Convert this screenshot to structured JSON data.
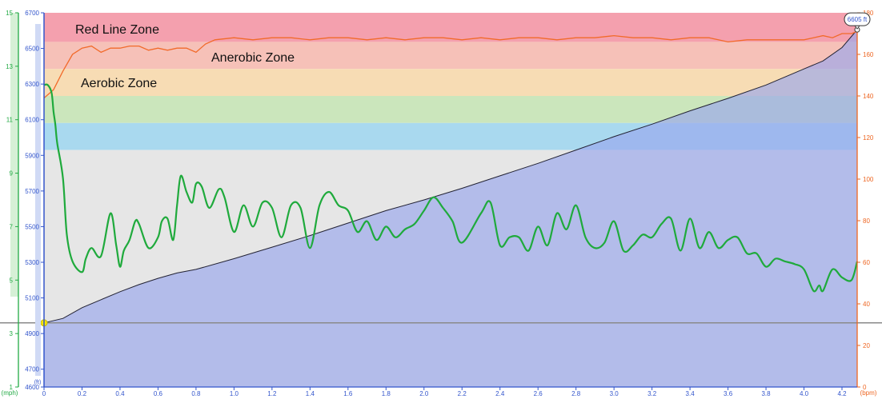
{
  "chart_data": {
    "type": "line",
    "xlabel": "",
    "x_ticks": [
      "0",
      "0.2",
      "0.4",
      "0.6",
      "0.8",
      "1.0",
      "1.2",
      "1.4",
      "1.6",
      "1.8",
      "2.0",
      "2.2",
      "2.4",
      "2.6",
      "2.8",
      "3.0",
      "3.2",
      "3.4",
      "3.6",
      "3.8",
      "4.0",
      "4.2"
    ],
    "xlim": [
      0,
      4.28
    ],
    "axes": {
      "speed": {
        "unit": "(mph)",
        "ticks": [
          "1",
          "3",
          "5",
          "7",
          "9",
          "11",
          "13",
          "15"
        ],
        "ylim": [
          1,
          15
        ],
        "color": "#22aa44"
      },
      "elevation": {
        "unit": "(ft)",
        "ticks": [
          "4600",
          "4700",
          "4900",
          "5100",
          "5300",
          "5500",
          "5700",
          "5900",
          "6100",
          "6300",
          "6500",
          "6700"
        ],
        "ylim": [
          4600,
          6700
        ],
        "color": "#3355cc"
      },
      "heart_rate": {
        "unit": "(bpm)",
        "ticks": [
          "0",
          "20",
          "40",
          "60",
          "80",
          "100",
          "120",
          "140",
          "160",
          "180"
        ],
        "ylim": [
          0,
          180
        ],
        "color": "#ee6622"
      }
    },
    "zones": [
      {
        "label": "Red Line Zone",
        "from": 166,
        "to": 181,
        "color": "#f4a0ae"
      },
      {
        "label": "Anerobic Zone",
        "from": 153,
        "to": 166,
        "color": "#f6c1b8"
      },
      {
        "label": "Aerobic Zone",
        "from": 140,
        "to": 153,
        "color": "#f7dcb4"
      },
      {
        "label": "",
        "from": 127,
        "to": 140,
        "color": "#cbe6bc"
      },
      {
        "label": "",
        "from": 114,
        "to": 127,
        "color": "#a9d9ef"
      },
      {
        "label": "",
        "from": 0,
        "to": 114,
        "color": "#e6e6e6"
      }
    ],
    "series": [
      {
        "key": "elevation",
        "axis": "elevation",
        "x": [
          0,
          0.1,
          0.2,
          0.3,
          0.4,
          0.5,
          0.6,
          0.7,
          0.8,
          1.0,
          1.2,
          1.4,
          1.6,
          1.8,
          2.0,
          2.2,
          2.4,
          2.6,
          2.8,
          3.0,
          3.2,
          3.4,
          3.6,
          3.8,
          4.0,
          4.1,
          4.2,
          4.28
        ],
        "y": [
          4960,
          4985,
          5045,
          5090,
          5135,
          5175,
          5210,
          5240,
          5260,
          5320,
          5385,
          5450,
          5520,
          5590,
          5650,
          5715,
          5785,
          5855,
          5930,
          6005,
          6075,
          6150,
          6220,
          6295,
          6385,
          6430,
          6505,
          6605
        ]
      },
      {
        "key": "heart_rate",
        "axis": "heart_rate",
        "x": [
          0,
          0.05,
          0.1,
          0.15,
          0.2,
          0.25,
          0.3,
          0.35,
          0.4,
          0.45,
          0.5,
          0.55,
          0.6,
          0.65,
          0.7,
          0.75,
          0.8,
          0.85,
          0.9,
          1.0,
          1.1,
          1.2,
          1.3,
          1.4,
          1.5,
          1.6,
          1.7,
          1.8,
          1.9,
          2.0,
          2.1,
          2.2,
          2.3,
          2.4,
          2.5,
          2.6,
          2.7,
          2.8,
          2.9,
          3.0,
          3.1,
          3.2,
          3.3,
          3.4,
          3.5,
          3.6,
          3.7,
          3.8,
          3.9,
          4.0,
          4.05,
          4.1,
          4.15,
          4.2,
          4.25,
          4.28
        ],
        "y": [
          139,
          143,
          152,
          160,
          163,
          164,
          161,
          163,
          163,
          164,
          164,
          162,
          163,
          162,
          163,
          163,
          161,
          165,
          167,
          168,
          167,
          168,
          168,
          167,
          168,
          168,
          167,
          168,
          167,
          168,
          168,
          167,
          168,
          167,
          168,
          168,
          167,
          168,
          168,
          169,
          168,
          168,
          167,
          168,
          168,
          166,
          167,
          167,
          167,
          167,
          168,
          169,
          168,
          170,
          170,
          171
        ]
      },
      {
        "key": "speed",
        "axis": "speed",
        "x": [
          0,
          0.02,
          0.04,
          0.05,
          0.06,
          0.07,
          0.1,
          0.12,
          0.15,
          0.2,
          0.22,
          0.25,
          0.3,
          0.35,
          0.38,
          0.4,
          0.42,
          0.45,
          0.48,
          0.5,
          0.55,
          0.6,
          0.62,
          0.65,
          0.68,
          0.7,
          0.72,
          0.75,
          0.78,
          0.8,
          0.83,
          0.87,
          0.92,
          0.95,
          1.0,
          1.05,
          1.1,
          1.15,
          1.2,
          1.25,
          1.3,
          1.35,
          1.4,
          1.45,
          1.5,
          1.55,
          1.6,
          1.65,
          1.7,
          1.75,
          1.8,
          1.85,
          1.9,
          1.95,
          2.0,
          2.05,
          2.1,
          2.15,
          2.2,
          2.3,
          2.35,
          2.4,
          2.45,
          2.5,
          2.55,
          2.6,
          2.65,
          2.7,
          2.75,
          2.8,
          2.85,
          2.9,
          2.95,
          3.0,
          3.05,
          3.1,
          3.15,
          3.2,
          3.25,
          3.3,
          3.35,
          3.4,
          3.45,
          3.5,
          3.55,
          3.6,
          3.65,
          3.7,
          3.75,
          3.8,
          3.85,
          3.9,
          3.95,
          4.0,
          4.05,
          4.08,
          4.1,
          4.15,
          4.2,
          4.25,
          4.28
        ],
        "y": [
          12.3,
          12.3,
          12.0,
          11.3,
          10.8,
          10.1,
          8.8,
          6.7,
          5.7,
          5.3,
          5.8,
          6.2,
          5.9,
          7.5,
          6.3,
          5.5,
          6.1,
          6.5,
          7.2,
          7.1,
          6.2,
          6.6,
          7.2,
          7.3,
          6.5,
          7.8,
          8.9,
          8.3,
          7.9,
          8.6,
          8.5,
          7.7,
          8.4,
          8.1,
          6.8,
          7.8,
          7.0,
          7.9,
          7.7,
          6.6,
          7.8,
          7.7,
          6.2,
          7.8,
          8.3,
          7.8,
          7.6,
          6.8,
          7.2,
          6.5,
          7.0,
          6.6,
          6.9,
          7.1,
          7.6,
          8.1,
          7.7,
          7.2,
          6.4,
          7.5,
          7.9,
          6.3,
          6.6,
          6.6,
          6.1,
          7.0,
          6.3,
          7.5,
          6.9,
          7.8,
          6.6,
          6.2,
          6.4,
          7.2,
          6.1,
          6.3,
          6.7,
          6.6,
          7.1,
          7.3,
          6.1,
          7.3,
          6.2,
          6.8,
          6.2,
          6.5,
          6.6,
          6.0,
          6.0,
          5.5,
          5.8,
          5.7,
          5.6,
          5.4,
          4.6,
          4.8,
          4.6,
          5.4,
          5.1,
          5.0,
          5.7
        ]
      }
    ],
    "annotations": [
      {
        "series": "elevation",
        "at": "end",
        "text": "6605 ft"
      }
    ]
  }
}
